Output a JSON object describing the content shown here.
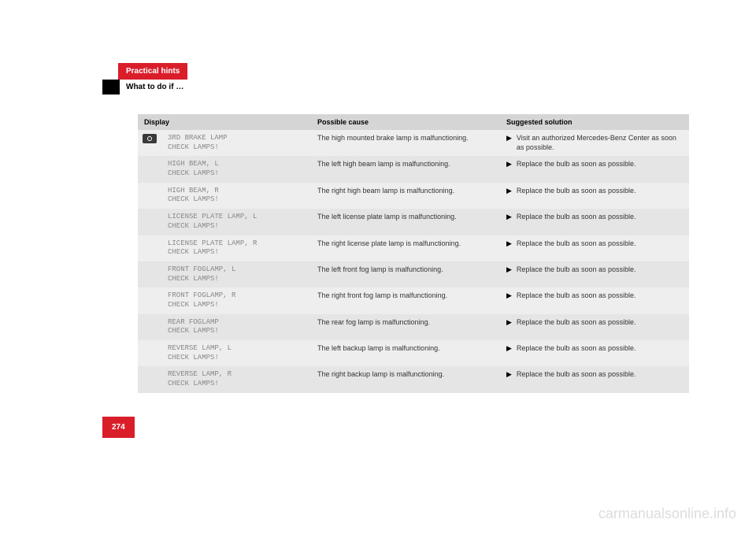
{
  "header": {
    "tab_label": "Practical hints",
    "section_title": "What to do if …"
  },
  "table": {
    "headers": {
      "display": "Display",
      "cause": "Possible cause",
      "solution": "Suggested solution"
    },
    "rows": [
      {
        "show_icon": true,
        "display_line1": "3RD BRAKE LAMP",
        "display_line2": "CHECK LAMPS!",
        "cause": "The high mounted brake lamp is malfunctioning.",
        "solution": "Visit an authorized Mercedes-Benz Center as soon as possible."
      },
      {
        "show_icon": false,
        "display_line1": "HIGH BEAM, L",
        "display_line2": "CHECK LAMPS!",
        "cause": "The left high beam lamp is malfunctioning.",
        "solution": "Replace the bulb as soon as possible."
      },
      {
        "show_icon": false,
        "display_line1": "HIGH BEAM, R",
        "display_line2": "CHECK LAMPS!",
        "cause": "The right high beam lamp is malfunctioning.",
        "solution": "Replace the bulb as soon as possible."
      },
      {
        "show_icon": false,
        "display_line1": "LICENSE PLATE LAMP, L",
        "display_line2": "CHECK LAMPS!",
        "cause": "The left license plate lamp is malfunctioning.",
        "solution": "Replace the bulb as soon as possible."
      },
      {
        "show_icon": false,
        "display_line1": "LICENSE PLATE LAMP, R",
        "display_line2": "CHECK LAMPS!",
        "cause": "The right license plate lamp is malfunctioning.",
        "solution": "Replace the bulb as soon as possible."
      },
      {
        "show_icon": false,
        "display_line1": "FRONT FOGLAMP, L",
        "display_line2": "CHECK LAMPS!",
        "cause": "The left front fog lamp is malfunctioning.",
        "solution": "Replace the bulb as soon as possible."
      },
      {
        "show_icon": false,
        "display_line1": "FRONT FOGLAMP, R",
        "display_line2": "CHECK LAMPS!",
        "cause": "The right front fog lamp is malfunctioning.",
        "solution": "Replace the bulb as soon as possible."
      },
      {
        "show_icon": false,
        "display_line1": "REAR FOGLAMP",
        "display_line2": "CHECK LAMPS!",
        "cause": "The rear fog lamp is malfunctioning.",
        "solution": "Replace the bulb as soon as possible."
      },
      {
        "show_icon": false,
        "display_line1": "REVERSE LAMP, L",
        "display_line2": "CHECK LAMPS!",
        "cause": "The left backup lamp is malfunctioning.",
        "solution": "Replace the bulb as soon as possible."
      },
      {
        "show_icon": false,
        "display_line1": "REVERSE LAMP, R",
        "display_line2": "CHECK LAMPS!",
        "cause": "The right backup lamp is malfunctioning.",
        "solution": "Replace the bulb as soon as possible."
      }
    ]
  },
  "page_number": "274",
  "watermark": "carmanualsonline.info",
  "colors": {
    "red": "#d91e2a",
    "black": "#000000",
    "header_bg": "#d5d5d5",
    "row_even": "#eeeeee",
    "row_odd": "#e5e5e5",
    "mono_text": "#888888"
  }
}
